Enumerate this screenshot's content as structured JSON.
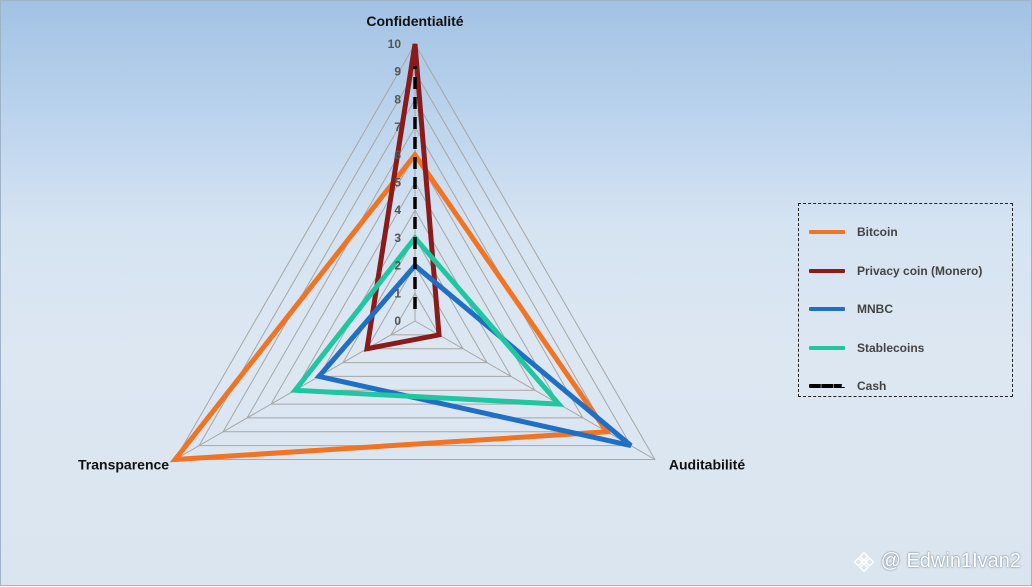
{
  "chart_data": {
    "type": "radar",
    "title": "",
    "axes": [
      "Confidentialité",
      "Auditabilité",
      "Transparence"
    ],
    "rlim": [
      0,
      10
    ],
    "ticks": [
      "0",
      "1",
      "2",
      "3",
      "4",
      "5",
      "6",
      "7",
      "8",
      "9",
      "10"
    ],
    "grid": true,
    "legend_position": "right",
    "series": [
      {
        "name": "Bitcoin",
        "values": [
          6,
          8,
          10
        ],
        "color": "#f07424",
        "dashed": false
      },
      {
        "name": "Privacy coin (Monero)",
        "values": [
          10,
          1,
          2
        ],
        "color": "#8b1a1a",
        "dashed": false
      },
      {
        "name": "MNBC",
        "values": [
          2,
          9,
          4
        ],
        "color": "#1f6fc4",
        "dashed": false
      },
      {
        "name": "Stablecoins",
        "values": [
          3,
          6,
          5
        ],
        "color": "#1ec7a0",
        "dashed": false
      },
      {
        "name": "Cash",
        "values": [
          0,
          0,
          0
        ],
        "color": "#000000",
        "dashed": true
      }
    ]
  },
  "watermark": {
    "text": "@ Edwin1Ivan2",
    "icon": "binance-logo-icon"
  }
}
